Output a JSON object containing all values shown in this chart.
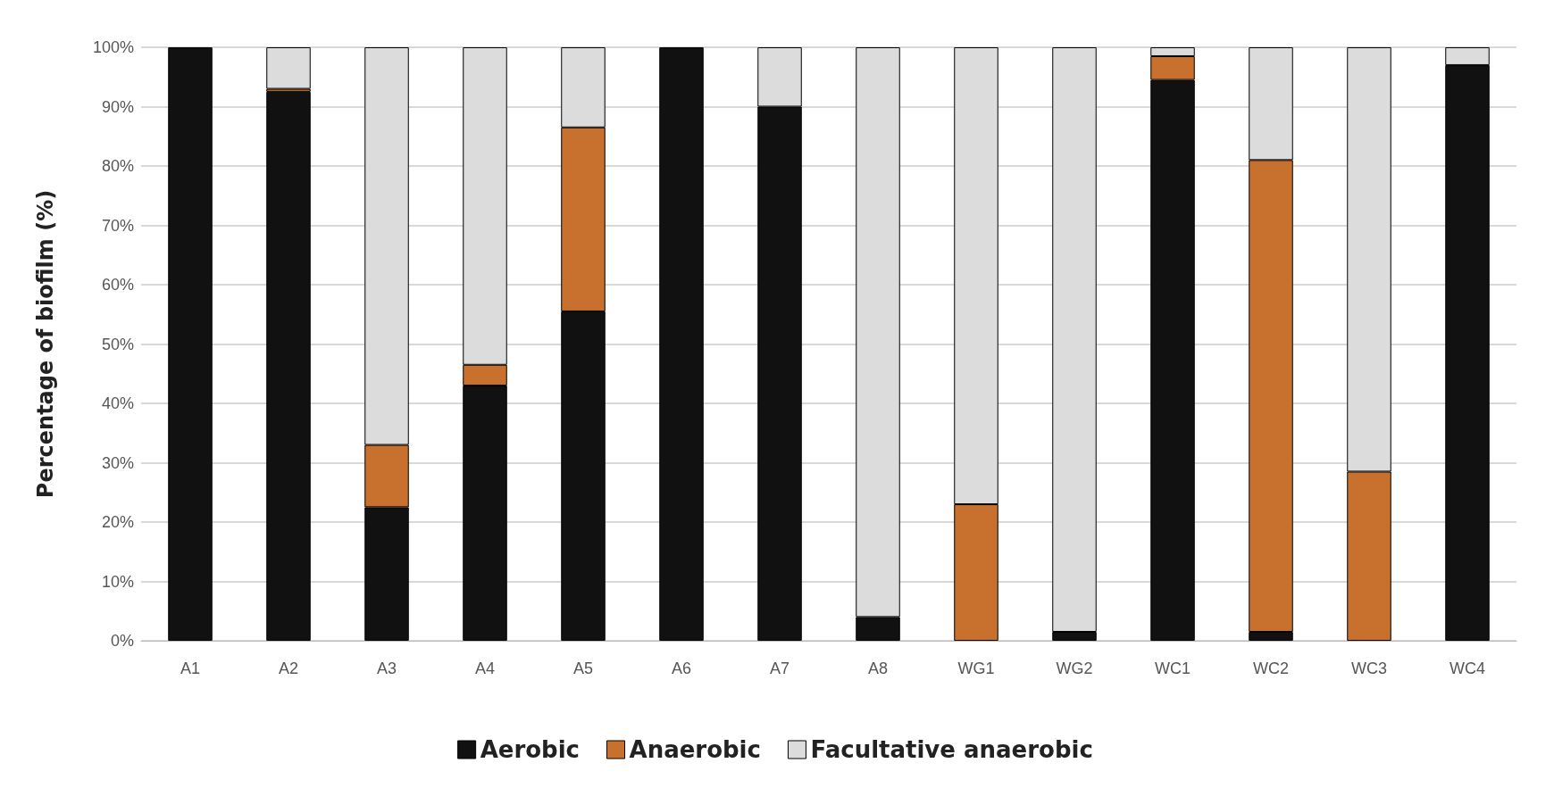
{
  "chart_data": {
    "type": "bar",
    "stacked": true,
    "ylabel": "Percentage of biofilm (%)",
    "categories": [
      "A1",
      "A2",
      "A3",
      "A4",
      "A5",
      "A6",
      "A7",
      "A8",
      "WG1",
      "WG2",
      "WC1",
      "WC2",
      "WC3",
      "WC4"
    ],
    "series": [
      {
        "name": "Aerobic",
        "color": "#111111",
        "values": [
          100,
          92.5,
          22.5,
          43,
          55.5,
          100,
          90,
          4,
          0,
          1.5,
          94.5,
          1.5,
          0,
          97
        ]
      },
      {
        "name": "Anaerobic",
        "color": "#c8702e",
        "values": [
          0,
          0.5,
          10.5,
          3.5,
          31,
          0,
          0,
          0,
          23,
          0,
          4,
          79.5,
          28.5,
          0
        ]
      },
      {
        "name": "Facultative anaerobic",
        "color": "#dcdcdc",
        "values": [
          0,
          7,
          67,
          53.5,
          13.5,
          0,
          10,
          96,
          77,
          98.5,
          1.5,
          19,
          71.5,
          3
        ]
      }
    ],
    "ylim": [
      0,
      100
    ],
    "yticks": [
      {
        "value": 0,
        "label": "0%"
      },
      {
        "value": 10,
        "label": "10%"
      },
      {
        "value": 20,
        "label": "20%"
      },
      {
        "value": 30,
        "label": "30%"
      },
      {
        "value": 40,
        "label": "40%"
      },
      {
        "value": 50,
        "label": "50%"
      },
      {
        "value": 60,
        "label": "60%"
      },
      {
        "value": 70,
        "label": "70%"
      },
      {
        "value": 80,
        "label": "80%"
      },
      {
        "value": 90,
        "label": "90%"
      },
      {
        "value": 100,
        "label": "100%"
      }
    ],
    "grid": "y",
    "legend": "bottom"
  }
}
